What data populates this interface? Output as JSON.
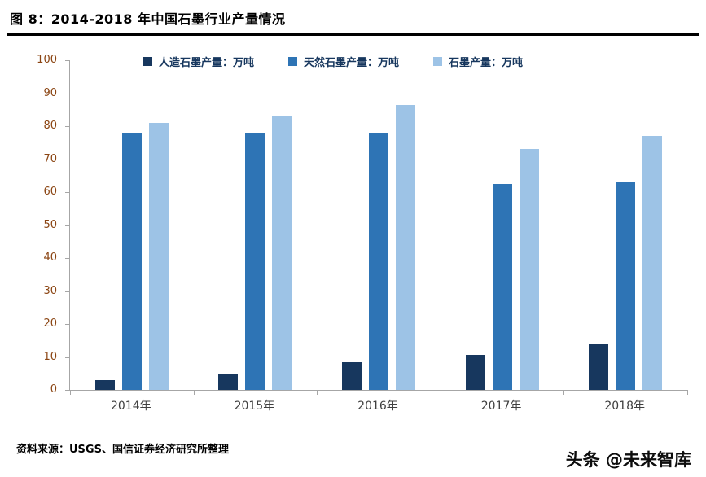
{
  "header": {
    "title": "图 8：2014-2018 年中国石墨行业产量情况"
  },
  "chart_data": {
    "type": "bar",
    "title": "2014-2018 年中国石墨行业产量情况",
    "categories": [
      "2014年",
      "2015年",
      "2016年",
      "2017年",
      "2018年"
    ],
    "series": [
      {
        "name": "人造石墨产量：万吨",
        "color": "#17375E",
        "values": [
          3,
          5,
          8.5,
          10.5,
          14
        ]
      },
      {
        "name": "天然石墨产量：万吨",
        "color": "#2E74B5",
        "values": [
          78,
          78,
          78,
          62.5,
          63
        ]
      },
      {
        "name": "石墨产量：万吨",
        "color": "#9DC3E6",
        "values": [
          81,
          83,
          86.5,
          73,
          77
        ]
      }
    ],
    "ylim": [
      0,
      100
    ],
    "ytick_step": 10,
    "grid": false,
    "legend_position": "top",
    "axis": {
      "y_tick_label_color": "#8B4513",
      "x_tick_label_color": "#404040",
      "legend_text_color": "#17375E",
      "line_color": "#A6A6A6"
    }
  },
  "footer": {
    "source": "资料来源：USGS、国信证券经济研究所整理",
    "watermark": "头条 @未来智库"
  }
}
